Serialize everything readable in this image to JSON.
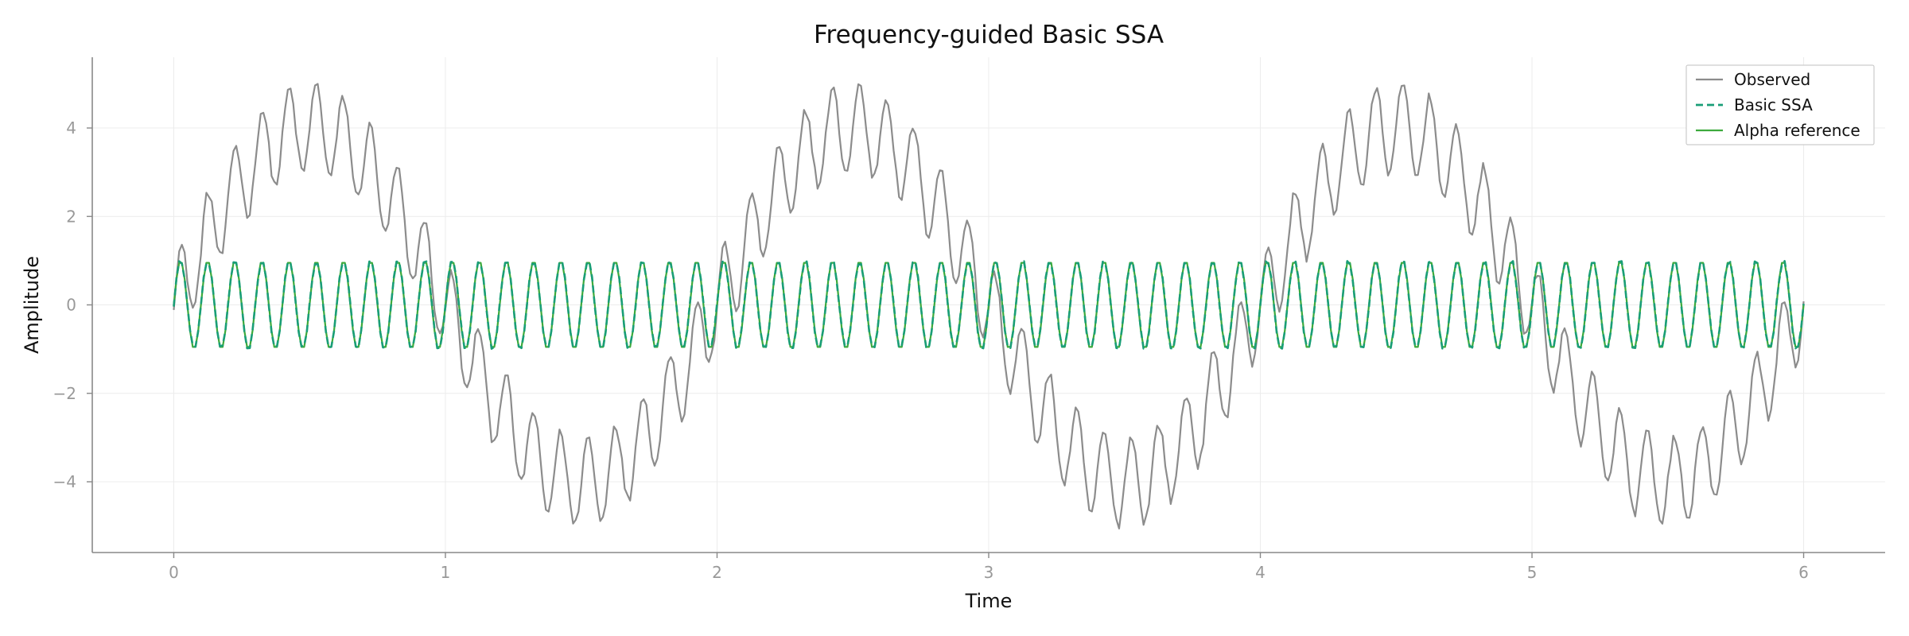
{
  "chart_data": {
    "type": "line",
    "title": "Frequency-guided Basic SSA",
    "xlabel": "Time",
    "ylabel": "Amplitude",
    "xlim": [
      -0.3,
      6.3
    ],
    "ylim": [
      -5.6,
      5.6
    ],
    "x_ticks": [
      0,
      1,
      2,
      3,
      4,
      5,
      6
    ],
    "x_tick_labels": [
      "0",
      "1",
      "2",
      "3",
      "4",
      "5",
      "6"
    ],
    "y_ticks": [
      -4,
      -2,
      0,
      2,
      4
    ],
    "y_tick_labels": [
      "−4",
      "−2",
      "0",
      "2",
      "4"
    ],
    "grid": true,
    "legend_position": "top-right",
    "sampling": {
      "x_start": 0,
      "x_end": 6,
      "step": 0.01
    },
    "series": [
      {
        "name": "Observed",
        "color": "#8c8c8c",
        "style": "solid",
        "components": [
          {
            "amplitude": 4.0,
            "frequency_hz": 0.5,
            "phase": 0
          },
          {
            "amplitude": 1.0,
            "frequency_hz": 10.0,
            "phase": 0
          }
        ],
        "noise_amplitude": 0.12
      },
      {
        "name": "Basic SSA",
        "color": "#1a9e77",
        "style": "dashed",
        "components": [
          {
            "amplitude": 1.0,
            "frequency_hz": 10.0,
            "phase": 0
          }
        ],
        "noise_amplitude": 0.04
      },
      {
        "name": "Alpha reference",
        "color": "#3daa3d",
        "style": "solid",
        "components": [
          {
            "amplitude": 1.0,
            "frequency_hz": 10.0,
            "phase": 0
          }
        ],
        "noise_amplitude": 0.0
      }
    ]
  }
}
